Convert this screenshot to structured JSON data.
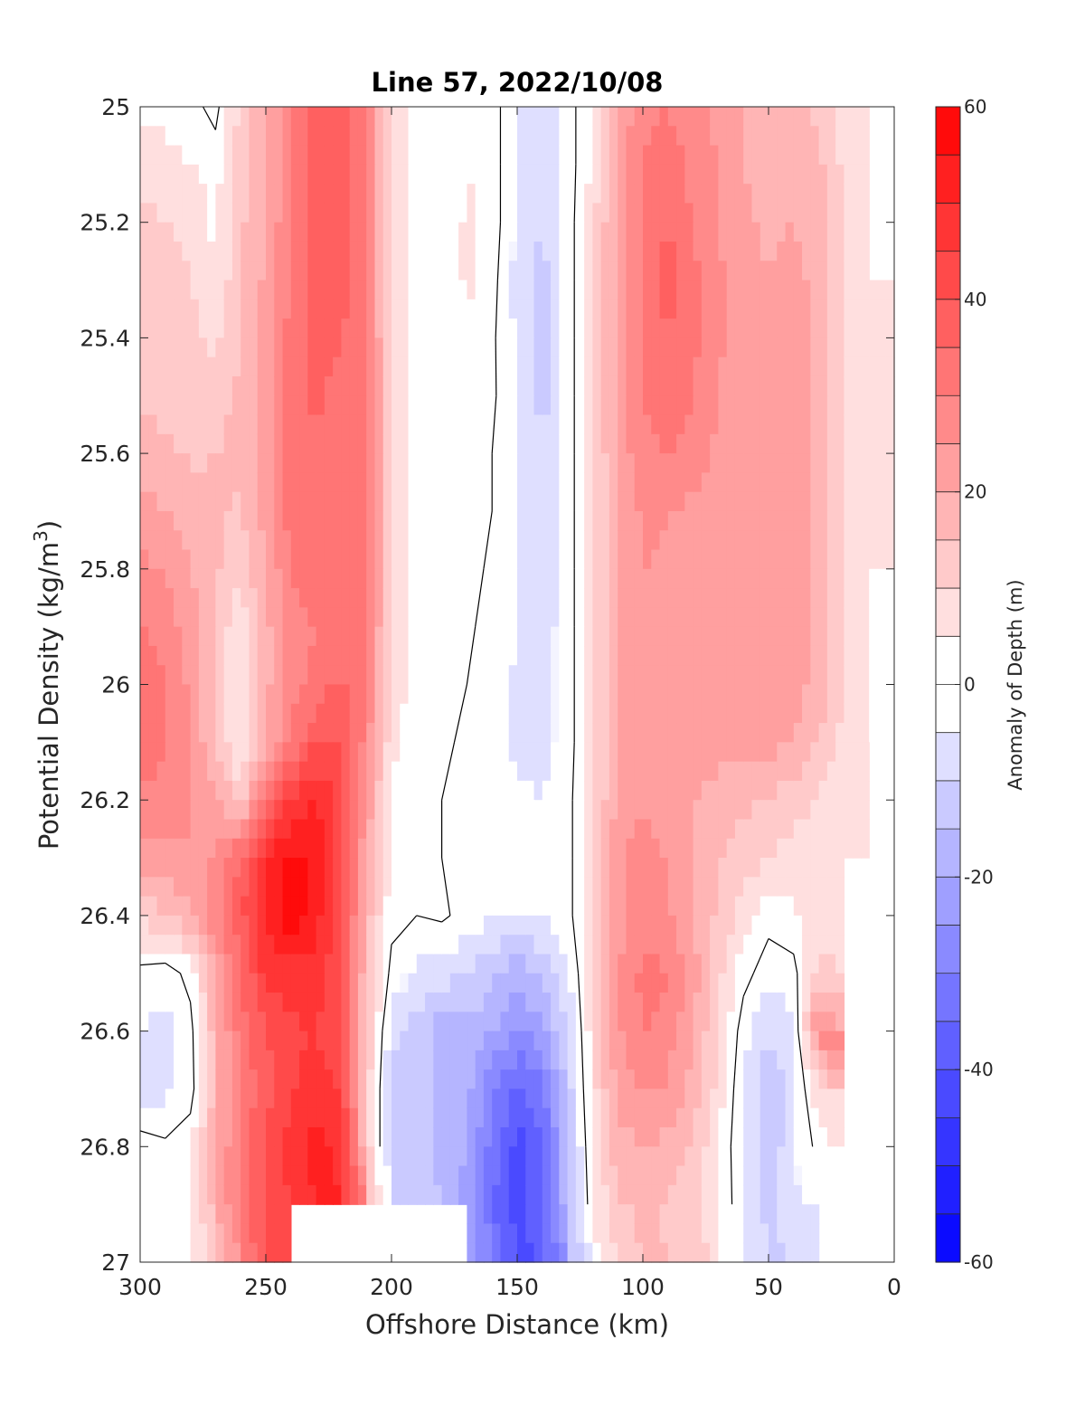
{
  "chart_data": {
    "type": "heatmap",
    "title": "Line 57, 2022/10/08",
    "xlabel": "Offshore Distance (km)",
    "ylabel": "Potential Density (kg/m",
    "ylabel_sup": "3",
    "ylabel_close": ")",
    "xlim": [
      300,
      0
    ],
    "ylim": [
      25,
      27
    ],
    "x_reversed": true,
    "y_reversed": true,
    "xticks": [
      300,
      250,
      200,
      150,
      100,
      50,
      0
    ],
    "xtick_labels": [
      "300",
      "250",
      "200",
      "150",
      "100",
      "50",
      "0"
    ],
    "yticks": [
      25,
      25.2,
      25.4,
      25.6,
      25.8,
      26,
      26.2,
      26.4,
      26.6,
      26.8,
      27
    ],
    "ytick_labels": [
      "25",
      "25.2",
      "25.4",
      "25.6",
      "25.8",
      "26",
      "26.2",
      "26.4",
      "26.6",
      "26.8",
      "27"
    ],
    "colorbar": {
      "label": "Anomaly of Depth (m)",
      "clim": [
        -60,
        60
      ],
      "step": 5,
      "ticks": [
        60,
        40,
        20,
        0,
        -20,
        -40,
        -60
      ],
      "tick_labels": [
        "60",
        "40",
        "20",
        "0",
        "-20",
        "-40",
        "-60"
      ],
      "colormap": "blue-white-red",
      "positive_color": "#ff0000",
      "negative_color": "#0000ff",
      "neutral_color": "#ffffff"
    },
    "grid": false,
    "x": [
      300,
      290,
      280,
      270,
      260,
      250,
      240,
      230,
      220,
      210,
      200,
      190,
      180,
      170,
      160,
      150,
      140,
      130,
      120,
      110,
      100,
      90,
      80,
      70,
      60,
      50,
      40,
      30,
      20,
      10
    ],
    "y": [
      25.0,
      25.1,
      25.2,
      25.3,
      25.4,
      25.5,
      25.6,
      25.7,
      25.8,
      25.9,
      26.0,
      26.1,
      26.2,
      26.3,
      26.4,
      26.5,
      26.6,
      26.7,
      26.8,
      26.9
    ],
    "z": [
      [
        3,
        4,
        2,
        -2,
        12,
        18,
        30,
        36,
        37,
        30,
        8,
        2,
        2,
        3,
        3,
        -6,
        -8,
        -3,
        6,
        20,
        28,
        30,
        26,
        24,
        20,
        18,
        18,
        14,
        8,
        null
      ],
      [
        8,
        6,
        5,
        3,
        12,
        19,
        30,
        36,
        38,
        30,
        8,
        2,
        0,
        5,
        3,
        -6,
        -9,
        -3,
        6,
        22,
        30,
        33,
        28,
        25,
        20,
        16,
        18,
        16,
        9,
        null
      ],
      [
        12,
        10,
        8,
        4,
        14,
        20,
        30,
        37,
        38,
        30,
        8,
        4,
        0,
        6,
        3,
        -6,
        -10,
        -3,
        8,
        22,
        30,
        35,
        30,
        25,
        22,
        18,
        20,
        17,
        10,
        null
      ],
      [
        12,
        12,
        10,
        6,
        14,
        21,
        30,
        37,
        38,
        30,
        9,
        3,
        1,
        6,
        2,
        -7,
        -12,
        -3,
        8,
        22,
        31,
        37,
        31,
        26,
        22,
        20,
        22,
        18,
        10,
        5
      ],
      [
        12,
        12,
        11,
        9,
        15,
        22,
        32,
        37,
        35,
        30,
        10,
        2,
        1,
        4,
        1,
        -6,
        -14,
        -3,
        8,
        22,
        31,
        35,
        31,
        26,
        22,
        24,
        25,
        18,
        10,
        5
      ],
      [
        14,
        13,
        12,
        12,
        16,
        22,
        32,
        36,
        33,
        30,
        10,
        3,
        1,
        3,
        1,
        -5,
        -12,
        -3,
        8,
        22,
        30,
        33,
        30,
        25,
        22,
        24,
        25,
        18,
        10,
        6
      ],
      [
        18,
        16,
        14,
        15,
        17,
        22,
        32,
        34,
        32,
        30,
        10,
        2,
        1,
        3,
        0,
        -5,
        -10,
        -3,
        8,
        22,
        28,
        30,
        28,
        24,
        22,
        22,
        22,
        18,
        10,
        6
      ],
      [
        22,
        20,
        18,
        16,
        14,
        22,
        32,
        33,
        32,
        30,
        10,
        2,
        1,
        3,
        0,
        -5,
        -9,
        -3,
        8,
        20,
        26,
        25,
        24,
        22,
        22,
        22,
        22,
        18,
        10,
        6
      ],
      [
        26,
        24,
        20,
        16,
        12,
        20,
        30,
        32,
        32,
        30,
        10,
        2,
        1,
        2,
        -1,
        -5,
        -8,
        -3,
        8,
        20,
        25,
        24,
        24,
        22,
        22,
        22,
        22,
        18,
        10,
        5
      ],
      [
        30,
        28,
        22,
        14,
        5,
        18,
        28,
        30,
        32,
        30,
        10,
        3,
        3,
        1,
        -2,
        -5,
        -7,
        -3,
        8,
        20,
        24,
        24,
        24,
        22,
        22,
        22,
        22,
        18,
        10,
        4
      ],
      [
        34,
        30,
        24,
        14,
        3,
        18,
        28,
        32,
        36,
        30,
        8,
        3,
        3,
        0,
        -2,
        -6,
        -7,
        -3,
        8,
        20,
        24,
        24,
        22,
        22,
        22,
        22,
        22,
        18,
        10,
        4
      ],
      [
        34,
        30,
        24,
        16,
        4,
        20,
        30,
        40,
        40,
        28,
        6,
        2,
        1,
        -1,
        -2,
        -6,
        -7,
        -3,
        8,
        20,
        24,
        24,
        22,
        22,
        22,
        22,
        20,
        15,
        8,
        null
      ],
      [
        28,
        28,
        26,
        20,
        12,
        32,
        45,
        50,
        42,
        24,
        4,
        2,
        0,
        -1,
        -2,
        -4,
        -5,
        -2,
        8,
        22,
        25,
        22,
        20,
        18,
        16,
        14,
        12,
        10,
        5,
        null
      ],
      [
        22,
        24,
        24,
        26,
        36,
        50,
        57,
        55,
        42,
        20,
        3,
        1,
        0,
        -1,
        -2,
        -3,
        -4,
        -2,
        8,
        24,
        27,
        25,
        20,
        16,
        12,
        10,
        8,
        6,
        null,
        null
      ],
      [
        12,
        14,
        20,
        28,
        38,
        52,
        58,
        52,
        42,
        18,
        2,
        0,
        1,
        -2,
        -4,
        -5,
        -5,
        -2,
        8,
        24,
        27,
        26,
        20,
        14,
        8,
        2,
        4,
        8,
        null,
        null
      ],
      [
        -2,
        -3,
        2,
        20,
        35,
        46,
        48,
        48,
        40,
        16,
        -2,
        -6,
        -8,
        -10,
        -14,
        -18,
        -14,
        -6,
        8,
        24,
        32,
        30,
        22,
        12,
        2,
        -3,
        -2,
        12,
        null,
        null
      ],
      [
        -5,
        -7,
        -2,
        18,
        32,
        40,
        44,
        45,
        40,
        14,
        -8,
        -12,
        -18,
        -16,
        -20,
        -26,
        -22,
        -10,
        8,
        24,
        30,
        28,
        20,
        10,
        -3,
        -10,
        -6,
        28,
        null,
        null
      ],
      [
        -8,
        -6,
        -3,
        18,
        30,
        38,
        44,
        48,
        44,
        14,
        -12,
        -14,
        -16,
        -18,
        -28,
        -36,
        -32,
        -14,
        8,
        22,
        26,
        24,
        18,
        8,
        -5,
        -14,
        -8,
        10,
        null,
        null
      ],
      [
        3,
        1,
        4,
        18,
        32,
        40,
        48,
        52,
        48,
        14,
        -12,
        -14,
        -16,
        -20,
        -32,
        -42,
        -36,
        -16,
        6,
        18,
        20,
        18,
        14,
        6,
        -6,
        -14,
        -6,
        2,
        null,
        null
      ],
      [
        2,
        2,
        4,
        18,
        32,
        40,
        null,
        null,
        null,
        null,
        null,
        null,
        null,
        -22,
        -34,
        -42,
        -36,
        -16,
        4,
        14,
        16,
        14,
        12,
        6,
        -5,
        -12,
        -6,
        null,
        null,
        null
      ]
    ]
  }
}
